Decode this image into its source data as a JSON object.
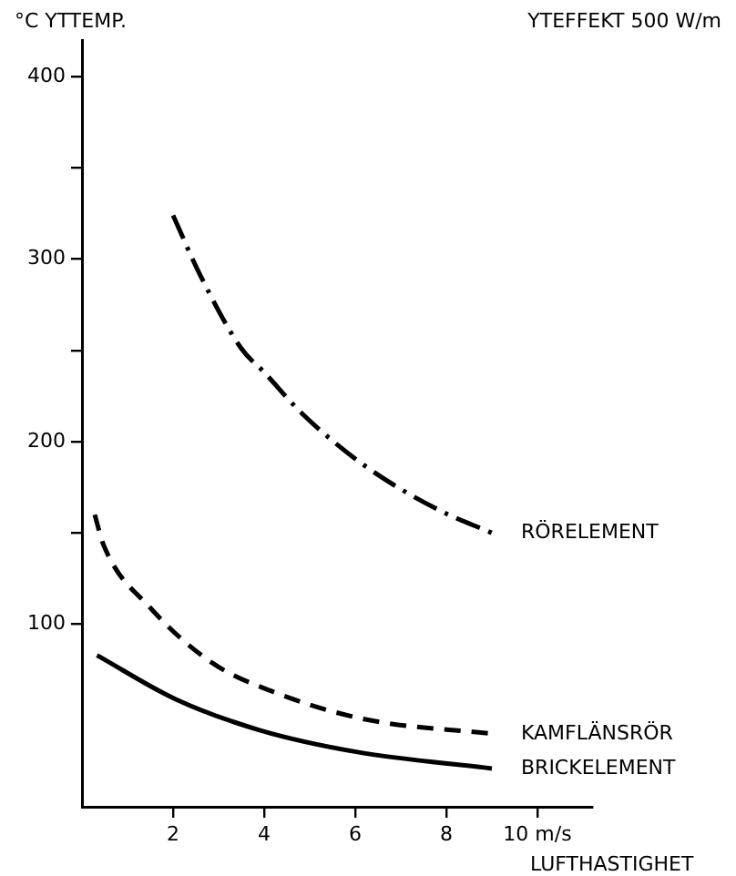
{
  "chart_data": {
    "type": "line",
    "ylabel": "°C YTTEMP.",
    "xlabel": "LUFTHASTIGHET",
    "annotations": [
      "YTEFFEKT 500 W/m"
    ],
    "xlim": [
      0,
      11.2
    ],
    "xticks": [
      2,
      4,
      6,
      8,
      {
        "value": 10,
        "label": "10 m/s"
      }
    ],
    "ylim": [
      0,
      420
    ],
    "yticks": [
      100,
      {
        "value": 150,
        "label": null
      },
      200,
      {
        "value": 250,
        "label": null
      },
      300,
      {
        "value": 350,
        "label": null
      },
      400
    ],
    "grid": false,
    "legend": false,
    "marker": "none",
    "series": [
      {
        "name": "RÖRELEMENT",
        "color": "#000000",
        "line_style": "dashdot",
        "x": [
          2,
          2.6,
          3.5,
          4,
          4.85,
          6.2,
          7.8,
          9
        ],
        "values": [
          324,
          291,
          251,
          238,
          215,
          187,
          163,
          150
        ]
      },
      {
        "name": "KAMFLÄNSRÖR",
        "color": "#000000",
        "line_style": "dashed",
        "x": [
          0.28,
          0.48,
          1.5,
          2.85,
          4.2,
          6.2,
          9
        ],
        "values": [
          160,
          143,
          109,
          79,
          63,
          48,
          40
        ]
      },
      {
        "name": "BRICKELEMENT",
        "color": "#000000",
        "line_style": "solid",
        "x": [
          0.33,
          2.05,
          3.9,
          6.05,
          9
        ],
        "values": [
          83,
          59,
          42,
          30,
          21
        ]
      }
    ]
  }
}
